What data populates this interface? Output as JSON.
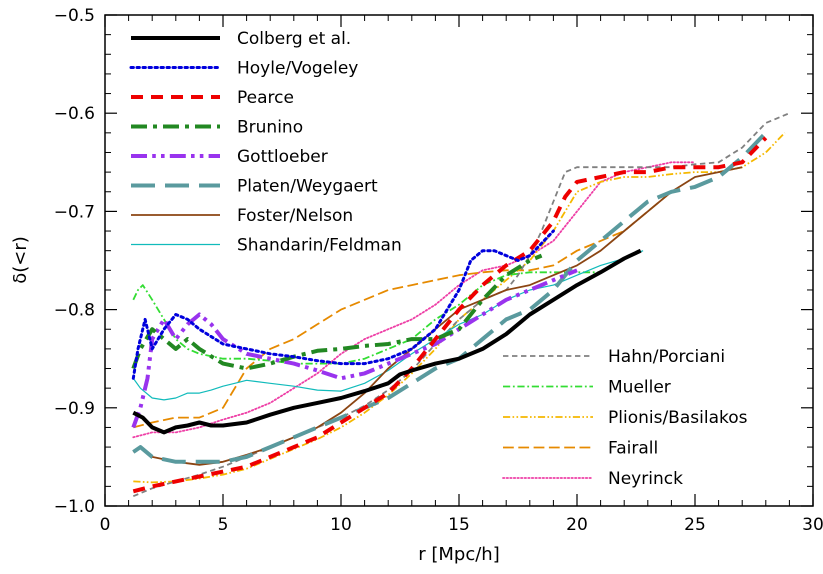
{
  "chart_data": {
    "type": "line",
    "xlabel": "r [Mpc/h]",
    "ylabel": "δ(<r)",
    "xlim": [
      0,
      30
    ],
    "ylim": [
      -1.0,
      -0.5
    ],
    "x_ticks": [
      "0",
      "5",
      "10",
      "15",
      "20",
      "25",
      "30"
    ],
    "y_ticks": [
      "−1.0",
      "−0.9",
      "−0.8",
      "−0.7",
      "−0.6",
      "−0.5"
    ],
    "grid": false,
    "legend_placement": [
      "top-left",
      "bottom-right"
    ],
    "series": [
      {
        "name": "Colberg et al.",
        "color": "#000000",
        "dash": "solid",
        "width": 4,
        "legend": "left",
        "x": [
          1.2,
          1.6,
          2.0,
          2.5,
          3.0,
          3.5,
          4.0,
          4.5,
          5.0,
          6.0,
          7.0,
          8.0,
          9.0,
          10.0,
          11.0,
          12.0,
          12.5,
          13.0,
          14.0,
          15.0,
          16.0,
          17.0,
          18.0,
          19.0,
          20.0,
          21.0,
          22.0,
          22.7
        ],
        "y": [
          -0.905,
          -0.91,
          -0.92,
          -0.925,
          -0.92,
          -0.918,
          -0.915,
          -0.918,
          -0.918,
          -0.915,
          -0.907,
          -0.9,
          -0.895,
          -0.89,
          -0.883,
          -0.875,
          -0.866,
          -0.862,
          -0.855,
          -0.85,
          -0.84,
          -0.825,
          -0.805,
          -0.79,
          -0.775,
          -0.762,
          -0.748,
          -0.74
        ]
      },
      {
        "name": "Hoyle/Vogeley",
        "color": "#0000dd",
        "dash": "dot",
        "width": 3,
        "legend": "left",
        "x": [
          1.2,
          1.4,
          1.7,
          2.0,
          2.5,
          3.0,
          3.5,
          4.0,
          5.0,
          6.0,
          7.0,
          8.0,
          9.0,
          10.0,
          11.0,
          12.0,
          13.0,
          14.0,
          15.0,
          15.5,
          16.0,
          16.5,
          17.0,
          17.5,
          18.0,
          19.0
        ],
        "y": [
          -0.87,
          -0.84,
          -0.81,
          -0.84,
          -0.82,
          -0.805,
          -0.81,
          -0.82,
          -0.835,
          -0.84,
          -0.845,
          -0.848,
          -0.852,
          -0.855,
          -0.855,
          -0.85,
          -0.84,
          -0.82,
          -0.78,
          -0.75,
          -0.74,
          -0.74,
          -0.745,
          -0.75,
          -0.745,
          -0.72
        ]
      },
      {
        "name": "Pearce",
        "color": "#ee0000",
        "dash": "dash",
        "width": 4,
        "legend": "left",
        "x": [
          1.2,
          2.0,
          3.0,
          4.0,
          5.0,
          6.0,
          7.0,
          8.0,
          9.0,
          10.0,
          11.0,
          12.0,
          13.0,
          14.0,
          15.0,
          16.0,
          17.0,
          18.0,
          19.0,
          19.5,
          20.0,
          21.0,
          22.0,
          23.0,
          24.0,
          25.0,
          26.0,
          27.0,
          28.0
        ],
        "y": [
          -0.985,
          -0.98,
          -0.975,
          -0.97,
          -0.965,
          -0.96,
          -0.95,
          -0.94,
          -0.93,
          -0.915,
          -0.9,
          -0.885,
          -0.86,
          -0.83,
          -0.8,
          -0.775,
          -0.755,
          -0.74,
          -0.71,
          -0.685,
          -0.67,
          -0.665,
          -0.66,
          -0.66,
          -0.655,
          -0.655,
          -0.655,
          -0.65,
          -0.625
        ]
      },
      {
        "name": "Brunino",
        "color": "#228822",
        "dash": "dashdot",
        "width": 4,
        "legend": "left",
        "x": [
          1.2,
          1.5,
          2.0,
          2.5,
          3.0,
          3.5,
          4.0,
          5.0,
          6.0,
          7.0,
          8.0,
          9.0,
          10.0,
          11.0,
          12.0,
          13.0,
          14.0,
          15.0,
          16.0,
          17.0,
          18.0,
          18.5
        ],
        "y": [
          -0.86,
          -0.84,
          -0.82,
          -0.83,
          -0.84,
          -0.83,
          -0.84,
          -0.855,
          -0.86,
          -0.855,
          -0.848,
          -0.842,
          -0.84,
          -0.837,
          -0.835,
          -0.83,
          -0.83,
          -0.82,
          -0.79,
          -0.765,
          -0.75,
          -0.745
        ]
      },
      {
        "name": "Gottloeber",
        "color": "#9933ee",
        "dash": "dashdotdot",
        "width": 4,
        "legend": "left",
        "x": [
          1.2,
          1.5,
          1.8,
          2.0,
          2.5,
          3.0,
          3.5,
          4.0,
          4.5,
          5.0,
          6.0,
          7.0,
          8.0,
          9.0,
          10.0,
          11.0,
          12.0,
          13.0,
          14.0,
          15.0,
          16.0,
          17.0,
          18.0,
          19.0,
          20.0
        ],
        "y": [
          -0.92,
          -0.9,
          -0.87,
          -0.83,
          -0.81,
          -0.83,
          -0.815,
          -0.805,
          -0.815,
          -0.83,
          -0.845,
          -0.85,
          -0.855,
          -0.862,
          -0.87,
          -0.865,
          -0.855,
          -0.845,
          -0.835,
          -0.82,
          -0.805,
          -0.79,
          -0.78,
          -0.77,
          -0.76
        ]
      },
      {
        "name": "Platen/Weygaert",
        "color": "#5a9a9e",
        "dash": "longdash",
        "width": 4,
        "legend": "left",
        "x": [
          1.2,
          1.5,
          2.0,
          3.0,
          4.0,
          5.0,
          6.0,
          7.0,
          8.0,
          9.0,
          10.0,
          11.0,
          12.0,
          13.0,
          14.0,
          15.0,
          16.0,
          17.0,
          18.0,
          19.0,
          20.0,
          21.0,
          22.0,
          23.0,
          24.0,
          25.0,
          26.0,
          27.0,
          28.0
        ],
        "y": [
          -0.945,
          -0.94,
          -0.95,
          -0.955,
          -0.955,
          -0.955,
          -0.95,
          -0.94,
          -0.93,
          -0.92,
          -0.91,
          -0.9,
          -0.89,
          -0.875,
          -0.86,
          -0.85,
          -0.83,
          -0.81,
          -0.8,
          -0.78,
          -0.75,
          -0.73,
          -0.71,
          -0.69,
          -0.68,
          -0.675,
          -0.665,
          -0.645,
          -0.62
        ]
      },
      {
        "name": "Foster/Nelson",
        "color": "#8b4513",
        "dash": "solid",
        "width": 1.8,
        "legend": "left",
        "x": [
          1.2,
          1.5,
          2.0,
          3.0,
          4.0,
          5.0,
          6.0,
          7.0,
          8.0,
          9.0,
          10.0,
          11.0,
          12.0,
          13.0,
          14.0,
          15.0,
          16.0,
          17.0,
          18.0,
          19.0,
          20.0,
          21.0,
          22.0,
          23.0,
          24.0,
          25.0,
          26.0,
          27.0
        ],
        "y": [
          -0.945,
          -0.94,
          -0.95,
          -0.955,
          -0.958,
          -0.955,
          -0.948,
          -0.94,
          -0.93,
          -0.92,
          -0.905,
          -0.885,
          -0.86,
          -0.84,
          -0.82,
          -0.8,
          -0.79,
          -0.78,
          -0.775,
          -0.765,
          -0.755,
          -0.74,
          -0.72,
          -0.7,
          -0.68,
          -0.665,
          -0.66,
          -0.655
        ]
      },
      {
        "name": "Shandarin/Feldman",
        "color": "#11bbbb",
        "dash": "solid",
        "width": 1.2,
        "legend": "left",
        "x": [
          1.2,
          1.5,
          2.0,
          2.5,
          3.0,
          3.5,
          4.0,
          4.5,
          5.0,
          5.5,
          6.0,
          7.0,
          8.0,
          9.0,
          10.0,
          11.0,
          12.0,
          13.0,
          14.0,
          15.0,
          16.0,
          17.0,
          18.0,
          19.0,
          20.0,
          21.0,
          22.0,
          22.8
        ],
        "y": [
          -0.87,
          -0.88,
          -0.89,
          -0.892,
          -0.89,
          -0.885,
          -0.885,
          -0.882,
          -0.878,
          -0.875,
          -0.872,
          -0.875,
          -0.878,
          -0.882,
          -0.883,
          -0.875,
          -0.862,
          -0.845,
          -0.83,
          -0.815,
          -0.805,
          -0.79,
          -0.78,
          -0.775,
          -0.765,
          -0.755,
          -0.748,
          -0.74
        ]
      },
      {
        "name": "Hahn/Porciani",
        "color": "#808080",
        "dash": "dash",
        "width": 1.8,
        "legend": "right",
        "x": [
          1.2,
          2.0,
          3.0,
          4.0,
          5.0,
          6.0,
          7.0,
          8.0,
          9.0,
          10.0,
          11.0,
          12.0,
          13.0,
          14.0,
          15.0,
          16.0,
          17.0,
          17.5,
          18.0,
          18.5,
          19.0,
          19.5,
          20.0,
          21.0,
          22.0,
          23.0,
          24.0,
          25.0,
          26.0,
          27.0,
          28.0,
          29.0
        ],
        "y": [
          -0.99,
          -0.982,
          -0.975,
          -0.968,
          -0.96,
          -0.95,
          -0.94,
          -0.93,
          -0.92,
          -0.91,
          -0.898,
          -0.882,
          -0.862,
          -0.835,
          -0.81,
          -0.79,
          -0.78,
          -0.765,
          -0.745,
          -0.72,
          -0.69,
          -0.66,
          -0.655,
          -0.655,
          -0.655,
          -0.655,
          -0.655,
          -0.652,
          -0.65,
          -0.635,
          -0.61,
          -0.6
        ]
      },
      {
        "name": "Mueller",
        "color": "#33dd33",
        "dash": "dashdot",
        "width": 1.8,
        "legend": "right",
        "x": [
          1.2,
          1.4,
          1.6,
          2.0,
          2.5,
          3.0,
          3.5,
          4.0,
          5.0,
          6.0,
          7.0,
          8.0,
          9.0,
          10.0,
          11.0,
          12.0,
          13.0,
          14.0,
          15.0,
          16.0,
          17.0,
          18.0,
          19.0,
          20.0,
          21.0
        ],
        "y": [
          -0.79,
          -0.78,
          -0.775,
          -0.79,
          -0.81,
          -0.83,
          -0.84,
          -0.845,
          -0.85,
          -0.85,
          -0.852,
          -0.855,
          -0.855,
          -0.855,
          -0.85,
          -0.84,
          -0.83,
          -0.81,
          -0.795,
          -0.775,
          -0.765,
          -0.762,
          -0.762,
          -0.762,
          -0.762
        ]
      },
      {
        "name": "Plionis/Basilakos",
        "color": "#f5b800",
        "dash": "dashdotdot",
        "width": 1.8,
        "legend": "right",
        "x": [
          1.2,
          2.0,
          3.0,
          4.0,
          5.0,
          6.0,
          7.0,
          8.0,
          9.0,
          10.0,
          11.0,
          12.0,
          13.0,
          14.0,
          15.0,
          16.0,
          17.0,
          18.0,
          19.0,
          20.0,
          21.0,
          22.0,
          23.0,
          24.0,
          25.0,
          26.0,
          27.0,
          28.0,
          28.8
        ],
        "y": [
          -0.975,
          -0.976,
          -0.975,
          -0.972,
          -0.968,
          -0.962,
          -0.952,
          -0.942,
          -0.932,
          -0.92,
          -0.905,
          -0.887,
          -0.865,
          -0.84,
          -0.81,
          -0.79,
          -0.77,
          -0.75,
          -0.72,
          -0.68,
          -0.67,
          -0.665,
          -0.665,
          -0.662,
          -0.66,
          -0.66,
          -0.655,
          -0.64,
          -0.62
        ]
      },
      {
        "name": "Fairall",
        "color": "#e68a00",
        "dash": "longdash",
        "width": 1.8,
        "legend": "right",
        "x": [
          1.2,
          2.0,
          3.0,
          4.0,
          5.0,
          6.0,
          7.0,
          8.0,
          9.0,
          10.0,
          11.0,
          12.0,
          13.0,
          14.0,
          15.0,
          16.0,
          17.0,
          18.0,
          19.0,
          20.0,
          21.0,
          22.0,
          23.0,
          24.0
        ],
        "y": [
          -0.92,
          -0.915,
          -0.91,
          -0.91,
          -0.9,
          -0.86,
          -0.84,
          -0.83,
          -0.815,
          -0.8,
          -0.79,
          -0.78,
          -0.775,
          -0.77,
          -0.765,
          -0.762,
          -0.76,
          -0.76,
          -0.755,
          -0.74,
          -0.73,
          -0.72,
          -0.7,
          -0.68
        ]
      },
      {
        "name": "Neyrinck",
        "color": "#ee3fa6",
        "dash": "dot",
        "width": 1.8,
        "legend": "right",
        "x": [
          1.2,
          2.0,
          3.0,
          4.0,
          5.0,
          6.0,
          7.0,
          8.0,
          9.0,
          10.0,
          11.0,
          12.0,
          13.0,
          14.0,
          15.0,
          16.0,
          17.0,
          18.0,
          19.0,
          20.0,
          21.0,
          22.0,
          23.0,
          24.0,
          25.0
        ],
        "y": [
          -0.93,
          -0.925,
          -0.925,
          -0.92,
          -0.912,
          -0.905,
          -0.895,
          -0.88,
          -0.865,
          -0.845,
          -0.83,
          -0.82,
          -0.81,
          -0.795,
          -0.775,
          -0.76,
          -0.755,
          -0.745,
          -0.73,
          -0.7,
          -0.67,
          -0.66,
          -0.655,
          -0.65,
          -0.65
        ]
      }
    ]
  }
}
